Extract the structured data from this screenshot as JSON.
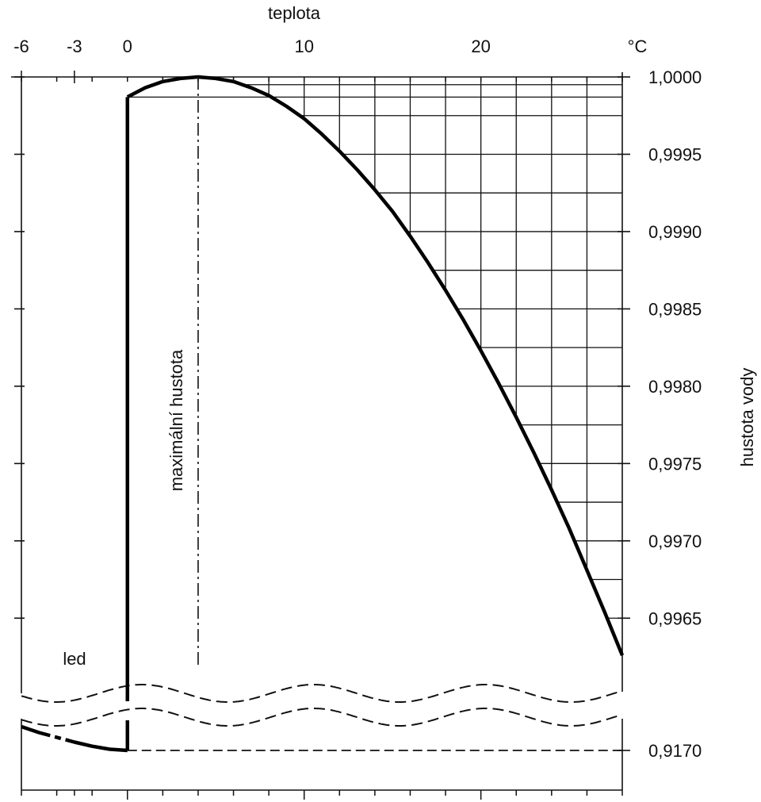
{
  "chart_data": {
    "type": "line",
    "title": "",
    "xlabel": "teplota",
    "x_unit": "°C",
    "ylabel": "hustota vody",
    "annotation": "maximální hustota",
    "ice_label": "led",
    "xlim": [
      -6,
      28
    ],
    "ylim_upper": [
      0.99625,
      1.0
    ],
    "y_break_value": 0.917,
    "x_ticks": [
      {
        "value": -6,
        "label": "-6"
      },
      {
        "value": -3,
        "label": "-3"
      },
      {
        "value": 0,
        "label": "0"
      },
      {
        "value": 10,
        "label": "10"
      },
      {
        "value": 20,
        "label": "20"
      }
    ],
    "y_ticks": [
      {
        "value": 1.0,
        "label": "1,0000"
      },
      {
        "value": 0.9995,
        "label": "0,9995"
      },
      {
        "value": 0.999,
        "label": "0,9990"
      },
      {
        "value": 0.9985,
        "label": "0,9985"
      },
      {
        "value": 0.998,
        "label": "0,9980"
      },
      {
        "value": 0.9975,
        "label": "0,9975"
      },
      {
        "value": 0.997,
        "label": "0,9970"
      },
      {
        "value": 0.9965,
        "label": "0,9965"
      },
      {
        "value": 0.917,
        "label": "0,9170"
      }
    ],
    "max_density_temperature": 4,
    "series": [
      {
        "x": [
          0,
          1,
          2,
          3,
          4,
          5,
          6,
          7,
          8,
          9,
          10,
          11,
          12,
          13,
          14,
          15,
          16,
          17,
          18,
          19,
          20,
          21,
          22,
          23,
          24,
          25,
          26,
          27,
          28
        ],
        "values": [
          0.99987,
          0.99993,
          0.99997,
          0.99999,
          1.0,
          0.99999,
          0.99997,
          0.99993,
          0.99988,
          0.99981,
          0.99973,
          0.99963,
          0.99952,
          0.9994,
          0.99927,
          0.99913,
          0.99897,
          0.9988,
          0.99862,
          0.99843,
          0.99823,
          0.99802,
          0.9978,
          0.99757,
          0.99733,
          0.99708,
          0.99681,
          0.99654,
          0.99626
        ]
      },
      {
        "x": [
          -6,
          -5,
          -4,
          -3,
          -2,
          -1,
          0
        ],
        "values": [
          0.9174,
          0.9173,
          0.91722,
          0.91714,
          0.91707,
          0.91702,
          0.917
        ]
      }
    ]
  }
}
